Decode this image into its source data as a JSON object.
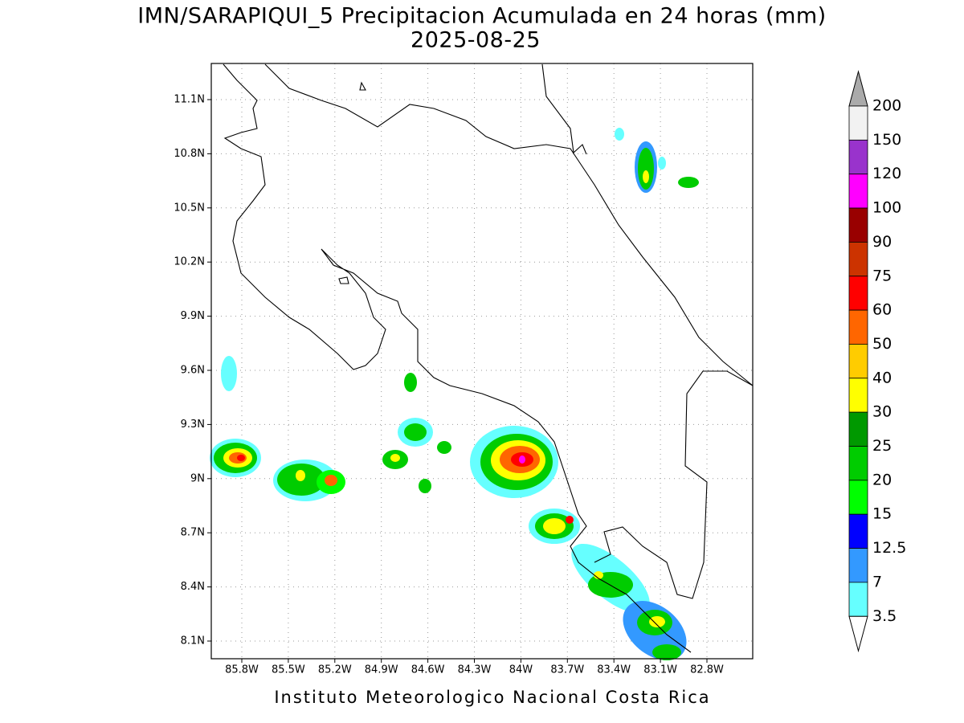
{
  "header": {
    "title": "IMN/SARAPIQUI_5 Precipitacion Acumulada en 24 horas (mm)",
    "subtitle": "2025-08-25"
  },
  "x_axis": {
    "labels": [
      "85.8W",
      "85.5W",
      "85.2W",
      "84.9W",
      "84.6W",
      "84.3W",
      "84W",
      "83.7W",
      "83.4W",
      "83.1W",
      "82.8W"
    ]
  },
  "y_axis": {
    "labels": [
      "11.1N",
      "10.8N",
      "10.5N",
      "10.2N",
      "9.9N",
      "9.6N",
      "9.3N",
      "9N",
      "8.7N",
      "8.4N",
      "8.1N"
    ]
  },
  "colorbar": {
    "labels": [
      "200",
      "150",
      "120",
      "100",
      "90",
      "75",
      "60",
      "50",
      "40",
      "30",
      "25",
      "20",
      "15",
      "12.5",
      "7",
      "3.5"
    ],
    "colors": [
      "#f2f2f2",
      "#9933cc",
      "#ff00ff",
      "#990000",
      "#cc3300",
      "#ff0000",
      "#ff6600",
      "#ffcc00",
      "#ffff00",
      "#009900",
      "#00cc00",
      "#00ff00",
      "#0000ff",
      "#3399ff",
      "#66ffff"
    ],
    "over_color": "#aaaaaa",
    "under_color": "#ffffff"
  },
  "footer": "Instituto Meteorologico Nacional Costa Rica"
}
